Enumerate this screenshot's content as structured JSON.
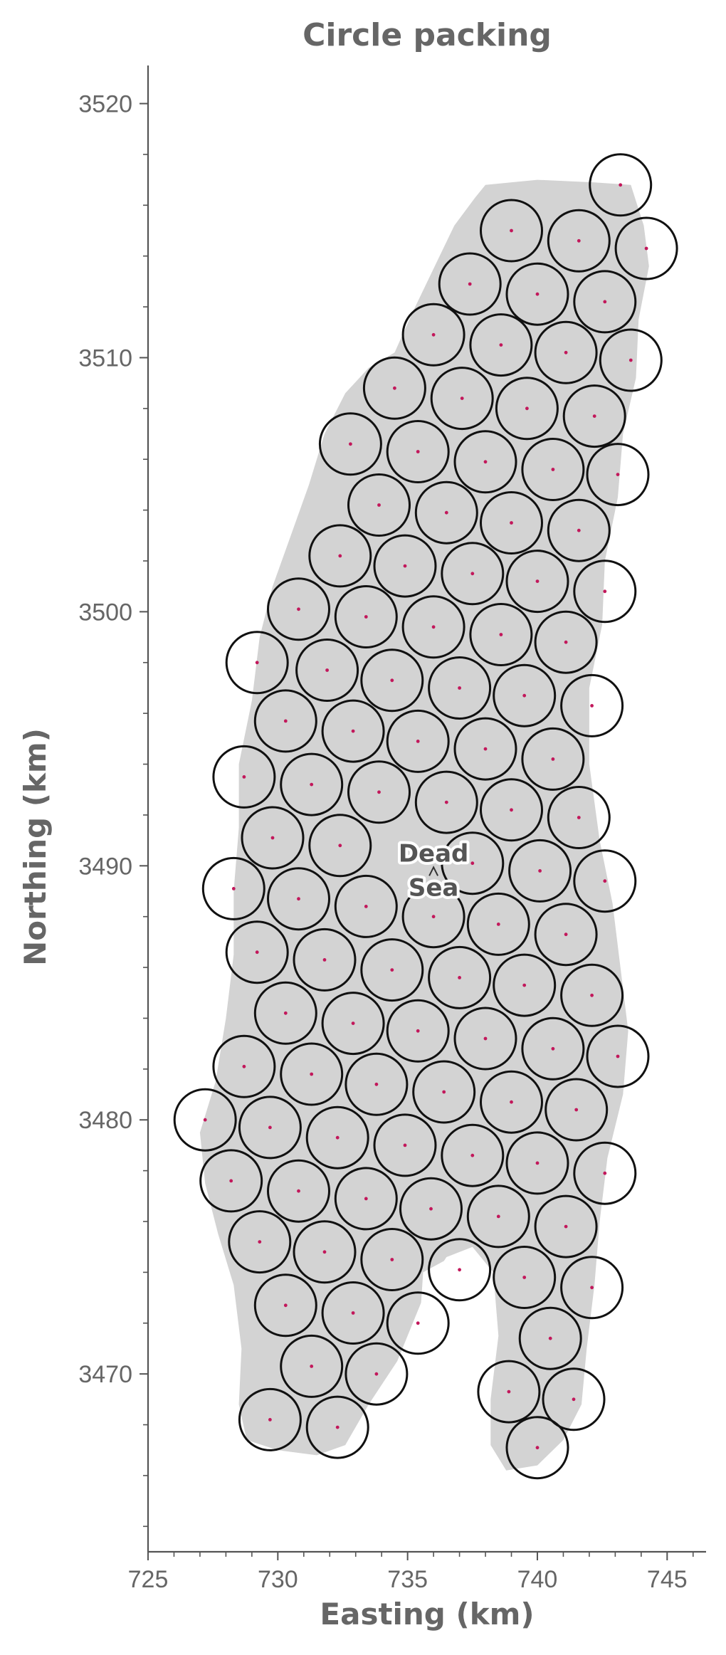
{
  "chart_data": {
    "type": "scatter",
    "title": "Circle packing",
    "xlabel": "Easting (km)",
    "ylabel": "Northing (km)",
    "xlim": [
      725,
      746.5
    ],
    "ylim": [
      3463,
      3521.5
    ],
    "xticks": [
      725,
      730,
      735,
      740,
      745
    ],
    "yticks": [
      3470,
      3480,
      3490,
      3500,
      3510,
      3520
    ],
    "circle_radius_km": 1.18,
    "grid": false,
    "annotation": {
      "text": [
        "Dead",
        "Sea"
      ],
      "x": 736.0,
      "y": 3490.0
    },
    "region_outline": [
      [
        738.0,
        3516.8
      ],
      [
        740.0,
        3517.0
      ],
      [
        742.2,
        3516.9
      ],
      [
        743.6,
        3516.8
      ],
      [
        744.1,
        3515.2
      ],
      [
        744.3,
        3513.6
      ],
      [
        743.9,
        3511.5
      ],
      [
        743.8,
        3509.2
      ],
      [
        743.3,
        3507.0
      ],
      [
        743.1,
        3504.5
      ],
      [
        742.6,
        3502.0
      ],
      [
        742.5,
        3499.5
      ],
      [
        742.0,
        3497.0
      ],
      [
        742.0,
        3494.0
      ],
      [
        742.4,
        3491.0
      ],
      [
        742.9,
        3488.5
      ],
      [
        743.2,
        3486.0
      ],
      [
        743.5,
        3483.5
      ],
      [
        743.3,
        3481.0
      ],
      [
        742.7,
        3478.5
      ],
      [
        742.4,
        3476.0
      ],
      [
        742.2,
        3473.5
      ],
      [
        741.9,
        3471.0
      ],
      [
        741.7,
        3468.8
      ],
      [
        741.0,
        3467.4
      ],
      [
        740.0,
        3466.4
      ],
      [
        738.8,
        3466.2
      ],
      [
        738.2,
        3467.2
      ],
      [
        738.2,
        3469.0
      ],
      [
        738.5,
        3471.5
      ],
      [
        738.3,
        3474.0
      ],
      [
        737.5,
        3475.0
      ],
      [
        736.5,
        3474.6
      ],
      [
        735.8,
        3473.5
      ],
      [
        735.2,
        3472.0
      ],
      [
        734.6,
        3470.5
      ],
      [
        733.5,
        3468.8
      ],
      [
        732.6,
        3467.2
      ],
      [
        731.5,
        3466.8
      ],
      [
        730.0,
        3467.0
      ],
      [
        728.8,
        3467.4
      ],
      [
        728.5,
        3468.8
      ],
      [
        728.6,
        3471.0
      ],
      [
        728.3,
        3473.5
      ],
      [
        727.7,
        3475.5
      ],
      [
        727.2,
        3477.5
      ],
      [
        727.0,
        3479.5
      ],
      [
        727.6,
        3481.5
      ],
      [
        728.0,
        3484.0
      ],
      [
        728.3,
        3486.5
      ],
      [
        728.3,
        3489.0
      ],
      [
        728.5,
        3491.5
      ],
      [
        728.5,
        3494.0
      ],
      [
        729.0,
        3496.5
      ],
      [
        729.3,
        3499.0
      ],
      [
        729.8,
        3501.0
      ],
      [
        730.5,
        3503.0
      ],
      [
        731.2,
        3505.0
      ],
      [
        731.8,
        3507.0
      ],
      [
        732.6,
        3508.6
      ],
      [
        733.5,
        3509.6
      ],
      [
        734.5,
        3510.2
      ],
      [
        735.2,
        3511.8
      ],
      [
        736.0,
        3513.5
      ],
      [
        736.8,
        3515.2
      ],
      [
        737.6,
        3516.3
      ]
    ],
    "inner_notch": [
      [
        735.6,
        3474.0
      ],
      [
        736.5,
        3474.5
      ],
      [
        737.5,
        3474.8
      ],
      [
        738.1,
        3473.8
      ],
      [
        738.3,
        3472.0
      ],
      [
        738.3,
        3470.0
      ],
      [
        737.8,
        3469.0
      ],
      [
        736.8,
        3469.6
      ],
      [
        736.0,
        3471.0
      ],
      [
        735.5,
        3472.5
      ]
    ],
    "points": [
      [
        743.2,
        3516.8
      ],
      [
        739.0,
        3515.0
      ],
      [
        741.6,
        3514.6
      ],
      [
        744.2,
        3514.3
      ],
      [
        737.4,
        3512.9
      ],
      [
        740.0,
        3512.5
      ],
      [
        742.6,
        3512.2
      ],
      [
        736.0,
        3510.9
      ],
      [
        738.6,
        3510.5
      ],
      [
        741.1,
        3510.2
      ],
      [
        743.6,
        3509.9
      ],
      [
        734.5,
        3508.8
      ],
      [
        737.1,
        3508.4
      ],
      [
        739.6,
        3508.0
      ],
      [
        742.2,
        3507.7
      ],
      [
        732.8,
        3506.6
      ],
      [
        735.4,
        3506.3
      ],
      [
        738.0,
        3505.9
      ],
      [
        740.6,
        3505.6
      ],
      [
        743.1,
        3505.4
      ],
      [
        733.9,
        3504.2
      ],
      [
        736.5,
        3503.9
      ],
      [
        739.0,
        3503.5
      ],
      [
        741.6,
        3503.2
      ],
      [
        732.4,
        3502.2
      ],
      [
        734.9,
        3501.8
      ],
      [
        737.5,
        3501.5
      ],
      [
        740.0,
        3501.2
      ],
      [
        742.6,
        3500.8
      ],
      [
        730.8,
        3500.1
      ],
      [
        733.4,
        3499.8
      ],
      [
        736.0,
        3499.4
      ],
      [
        738.6,
        3499.1
      ],
      [
        741.1,
        3498.8
      ],
      [
        729.2,
        3498.0
      ],
      [
        731.9,
        3497.7
      ],
      [
        734.4,
        3497.3
      ],
      [
        737.0,
        3497.0
      ],
      [
        739.5,
        3496.7
      ],
      [
        742.1,
        3496.3
      ],
      [
        730.3,
        3495.7
      ],
      [
        732.9,
        3495.3
      ],
      [
        735.4,
        3494.9
      ],
      [
        738.0,
        3494.6
      ],
      [
        740.6,
        3494.2
      ],
      [
        728.7,
        3493.5
      ],
      [
        731.3,
        3493.2
      ],
      [
        733.9,
        3492.9
      ],
      [
        736.5,
        3492.5
      ],
      [
        739.0,
        3492.2
      ],
      [
        741.6,
        3491.9
      ],
      [
        729.8,
        3491.1
      ],
      [
        732.4,
        3490.8
      ],
      [
        737.5,
        3490.1
      ],
      [
        740.1,
        3489.8
      ],
      [
        742.6,
        3489.4
      ],
      [
        728.3,
        3489.1
      ],
      [
        730.8,
        3488.7
      ],
      [
        733.4,
        3488.4
      ],
      [
        736.0,
        3488.0
      ],
      [
        738.5,
        3487.7
      ],
      [
        741.1,
        3487.3
      ],
      [
        729.2,
        3486.6
      ],
      [
        731.8,
        3486.3
      ],
      [
        734.4,
        3485.9
      ],
      [
        737.0,
        3485.6
      ],
      [
        739.5,
        3485.3
      ],
      [
        742.1,
        3484.9
      ],
      [
        730.3,
        3484.2
      ],
      [
        732.9,
        3483.8
      ],
      [
        735.4,
        3483.5
      ],
      [
        738.0,
        3483.2
      ],
      [
        740.6,
        3482.8
      ],
      [
        743.1,
        3482.5
      ],
      [
        728.7,
        3482.1
      ],
      [
        731.3,
        3481.8
      ],
      [
        733.8,
        3481.4
      ],
      [
        736.4,
        3481.1
      ],
      [
        739.0,
        3480.7
      ],
      [
        741.5,
        3480.4
      ],
      [
        727.2,
        3480.0
      ],
      [
        729.7,
        3479.7
      ],
      [
        732.3,
        3479.3
      ],
      [
        734.9,
        3479.0
      ],
      [
        737.5,
        3478.6
      ],
      [
        740.0,
        3478.3
      ],
      [
        742.6,
        3477.9
      ],
      [
        728.2,
        3477.6
      ],
      [
        730.8,
        3477.2
      ],
      [
        733.4,
        3476.9
      ],
      [
        735.9,
        3476.5
      ],
      [
        738.5,
        3476.2
      ],
      [
        741.1,
        3475.8
      ],
      [
        729.3,
        3475.2
      ],
      [
        731.8,
        3474.8
      ],
      [
        734.4,
        3474.5
      ],
      [
        737.0,
        3474.1
      ],
      [
        739.5,
        3473.8
      ],
      [
        742.1,
        3473.4
      ],
      [
        730.3,
        3472.7
      ],
      [
        732.9,
        3472.4
      ],
      [
        735.4,
        3472.0
      ],
      [
        740.5,
        3471.4
      ],
      [
        731.3,
        3470.3
      ],
      [
        733.8,
        3470.0
      ],
      [
        738.9,
        3469.3
      ],
      [
        741.4,
        3469.0
      ],
      [
        729.7,
        3468.2
      ],
      [
        732.3,
        3467.9
      ],
      [
        740.0,
        3467.1
      ]
    ]
  }
}
